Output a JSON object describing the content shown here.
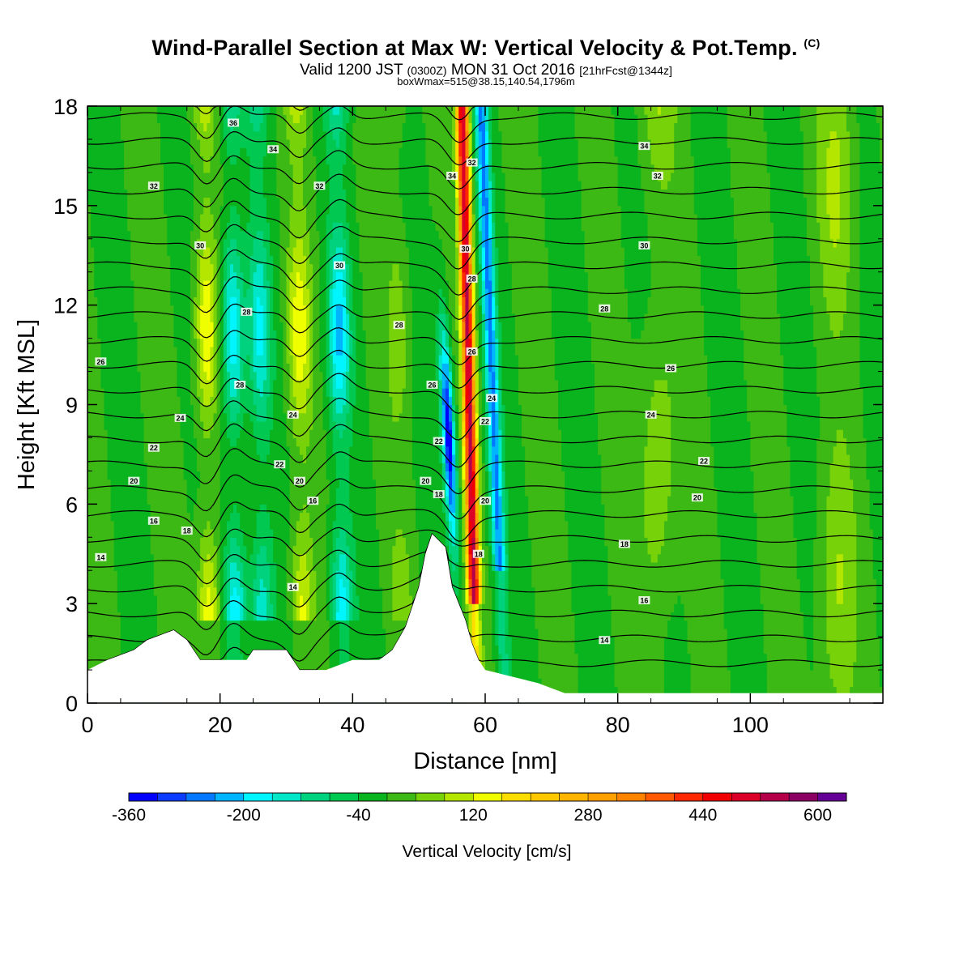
{
  "header": {
    "title": "Wind-Parallel Section at Max W: Vertical Velocity & Pot.Temp.",
    "copyright": "(C)",
    "valid_prefix": "Valid 1200 JST",
    "valid_utc": "(0300Z)",
    "valid_date": "MON 31 Oct 2016",
    "forecast": "[21hrFcst@1344z]",
    "box_info": "boxWmax=515@38.15,140.54,1796m"
  },
  "colorbar": {
    "label": "Vertical Velocity [cm/s]",
    "tick_labels": [
      "-360",
      "-200",
      "-40",
      "120",
      "280",
      "440",
      "600"
    ],
    "levels": [
      -360,
      -320,
      -280,
      -240,
      -200,
      -160,
      -120,
      -80,
      -40,
      0,
      40,
      80,
      120,
      160,
      200,
      240,
      280,
      320,
      360,
      400,
      440,
      480,
      520,
      560,
      600,
      640
    ],
    "colors": [
      "#0000ff",
      "#0a3cff",
      "#0078ff",
      "#00b4ff",
      "#00f5ff",
      "#00e6c8",
      "#00d27d",
      "#00c850",
      "#0ab41e",
      "#3cb914",
      "#78d20a",
      "#b4e600",
      "#f0ff00",
      "#ffdc00",
      "#ffc800",
      "#ffb400",
      "#ffa000",
      "#ff8200",
      "#ff5a00",
      "#ff2800",
      "#f00000",
      "#dc0028",
      "#b4004b",
      "#8c0064",
      "#640096"
    ]
  },
  "chart_data": {
    "type": "heatmap",
    "title": "Wind-Parallel Section at Max W: Vertical Velocity & Pot.Temp.",
    "xlabel": "Distance [nm]",
    "ylabel": "Height [Kft MSL]",
    "xlim": [
      0,
      120
    ],
    "ylim": [
      0,
      18
    ],
    "x_ticks": [
      "0",
      "20",
      "40",
      "60",
      "80",
      "100"
    ],
    "y_ticks": [
      "0",
      "3",
      "6",
      "9",
      "12",
      "15",
      "18"
    ],
    "background_value": 0,
    "features": [
      {
        "kind": "updraft",
        "x": 18,
        "max": 160
      },
      {
        "kind": "updraft",
        "x": 32,
        "max": 140
      },
      {
        "kind": "updraft",
        "x": 47,
        "max": 60
      },
      {
        "kind": "downdraft",
        "x": 22,
        "min": -200
      },
      {
        "kind": "downdraft",
        "x": 26,
        "min": -160
      },
      {
        "kind": "downdraft",
        "x": 38,
        "min": -200
      },
      {
        "kind": "downdraft",
        "x": 54.5,
        "min": -360
      },
      {
        "kind": "updraft",
        "x": 57.5,
        "max": 515
      },
      {
        "kind": "downdraft",
        "x": 61,
        "min": -240
      },
      {
        "kind": "updraft",
        "x": 86,
        "max": 80
      },
      {
        "kind": "updraft",
        "x": 113,
        "max": 80
      }
    ],
    "terrain": [
      {
        "x": 0,
        "h": 1.0
      },
      {
        "x": 3,
        "h": 1.3
      },
      {
        "x": 7,
        "h": 1.6
      },
      {
        "x": 9,
        "h": 1.9
      },
      {
        "x": 13,
        "h": 2.2
      },
      {
        "x": 15,
        "h": 1.9
      },
      {
        "x": 17,
        "h": 1.3
      },
      {
        "x": 24,
        "h": 1.3
      },
      {
        "x": 25,
        "h": 1.6
      },
      {
        "x": 30,
        "h": 1.6
      },
      {
        "x": 31,
        "h": 1.3
      },
      {
        "x": 32,
        "h": 1.0
      },
      {
        "x": 36,
        "h": 1.0
      },
      {
        "x": 40,
        "h": 1.3
      },
      {
        "x": 44,
        "h": 1.3
      },
      {
        "x": 46,
        "h": 1.6
      },
      {
        "x": 48,
        "h": 2.3
      },
      {
        "x": 50,
        "h": 3.5
      },
      {
        "x": 51,
        "h": 4.5
      },
      {
        "x": 52,
        "h": 5.1
      },
      {
        "x": 54,
        "h": 4.7
      },
      {
        "x": 55,
        "h": 3.5
      },
      {
        "x": 56,
        "h": 3.0
      },
      {
        "x": 57,
        "h": 2.5
      },
      {
        "x": 58,
        "h": 1.8
      },
      {
        "x": 59,
        "h": 1.3
      },
      {
        "x": 60,
        "h": 1.0
      },
      {
        "x": 68,
        "h": 0.6
      },
      {
        "x": 72,
        "h": 0.3
      },
      {
        "x": 120,
        "h": 0.3
      }
    ],
    "theta_contour_labels": [
      {
        "text": "14",
        "x": 2,
        "y": 4.4
      },
      {
        "text": "16",
        "x": 10,
        "y": 5.5
      },
      {
        "text": "18",
        "x": 15,
        "y": 5.2
      },
      {
        "text": "20",
        "x": 7,
        "y": 6.7
      },
      {
        "text": "22",
        "x": 10,
        "y": 7.7
      },
      {
        "text": "24",
        "x": 14,
        "y": 8.6
      },
      {
        "text": "26",
        "x": 2,
        "y": 10.3
      },
      {
        "text": "28",
        "x": 23,
        "y": 9.6
      },
      {
        "text": "28",
        "x": 24,
        "y": 11.8
      },
      {
        "text": "30",
        "x": 17,
        "y": 13.8
      },
      {
        "text": "32",
        "x": 10,
        "y": 15.6
      },
      {
        "text": "34",
        "x": 28,
        "y": 16.7
      },
      {
        "text": "36",
        "x": 22,
        "y": 17.5
      },
      {
        "text": "14",
        "x": 31,
        "y": 3.5
      },
      {
        "text": "16",
        "x": 34,
        "y": 6.1
      },
      {
        "text": "20",
        "x": 32,
        "y": 6.7
      },
      {
        "text": "22",
        "x": 29,
        "y": 7.2
      },
      {
        "text": "24",
        "x": 31,
        "y": 8.7
      },
      {
        "text": "32",
        "x": 35,
        "y": 15.6
      },
      {
        "text": "30",
        "x": 38,
        "y": 13.2
      },
      {
        "text": "28",
        "x": 47,
        "y": 11.4
      },
      {
        "text": "26",
        "x": 52,
        "y": 9.6
      },
      {
        "text": "22",
        "x": 53,
        "y": 7.9
      },
      {
        "text": "20",
        "x": 51,
        "y": 6.7
      },
      {
        "text": "18",
        "x": 53,
        "y": 6.3
      },
      {
        "text": "34",
        "x": 55,
        "y": 15.9
      },
      {
        "text": "32",
        "x": 58,
        "y": 16.3
      },
      {
        "text": "30",
        "x": 57,
        "y": 13.7
      },
      {
        "text": "28",
        "x": 58,
        "y": 12.8
      },
      {
        "text": "26",
        "x": 58,
        "y": 10.6
      },
      {
        "text": "24",
        "x": 61,
        "y": 9.2
      },
      {
        "text": "22",
        "x": 60,
        "y": 8.5
      },
      {
        "text": "20",
        "x": 60,
        "y": 6.1
      },
      {
        "text": "18",
        "x": 59,
        "y": 4.5
      },
      {
        "text": "34",
        "x": 84,
        "y": 16.8
      },
      {
        "text": "32",
        "x": 86,
        "y": 15.9
      },
      {
        "text": "30",
        "x": 84,
        "y": 13.8
      },
      {
        "text": "28",
        "x": 78,
        "y": 11.9
      },
      {
        "text": "26",
        "x": 88,
        "y": 10.1
      },
      {
        "text": "24",
        "x": 85,
        "y": 8.7
      },
      {
        "text": "22",
        "x": 93,
        "y": 7.3
      },
      {
        "text": "20",
        "x": 92,
        "y": 6.2
      },
      {
        "text": "18",
        "x": 81,
        "y": 4.8
      },
      {
        "text": "16",
        "x": 84,
        "y": 3.1
      },
      {
        "text": "14",
        "x": 78,
        "y": 1.9
      }
    ]
  }
}
